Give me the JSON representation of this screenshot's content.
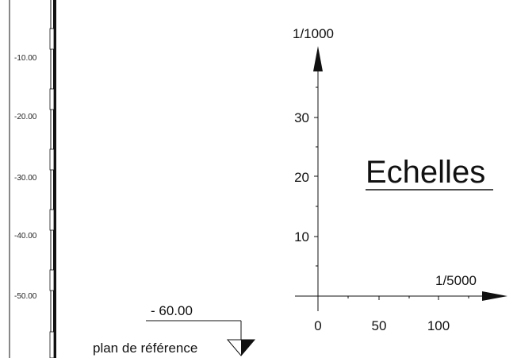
{
  "elevation_scale": {
    "tick_labels": [
      "-10.00",
      "-20.00",
      "-30.00",
      "-40.00",
      "-50.00"
    ]
  },
  "reference_plane": {
    "elevation": "- 60.00",
    "label": "plan de référence"
  },
  "title": "Echelles",
  "scales_diagram": {
    "vertical_axis_label": "1/1000",
    "vertical_ticks": [
      "30",
      "20",
      "10"
    ],
    "horizontal_axis_label": "1/5000",
    "horizontal_ticks": [
      "0",
      "50",
      "100"
    ]
  },
  "colors": {
    "ink": "#111111",
    "background": "#ffffff"
  }
}
